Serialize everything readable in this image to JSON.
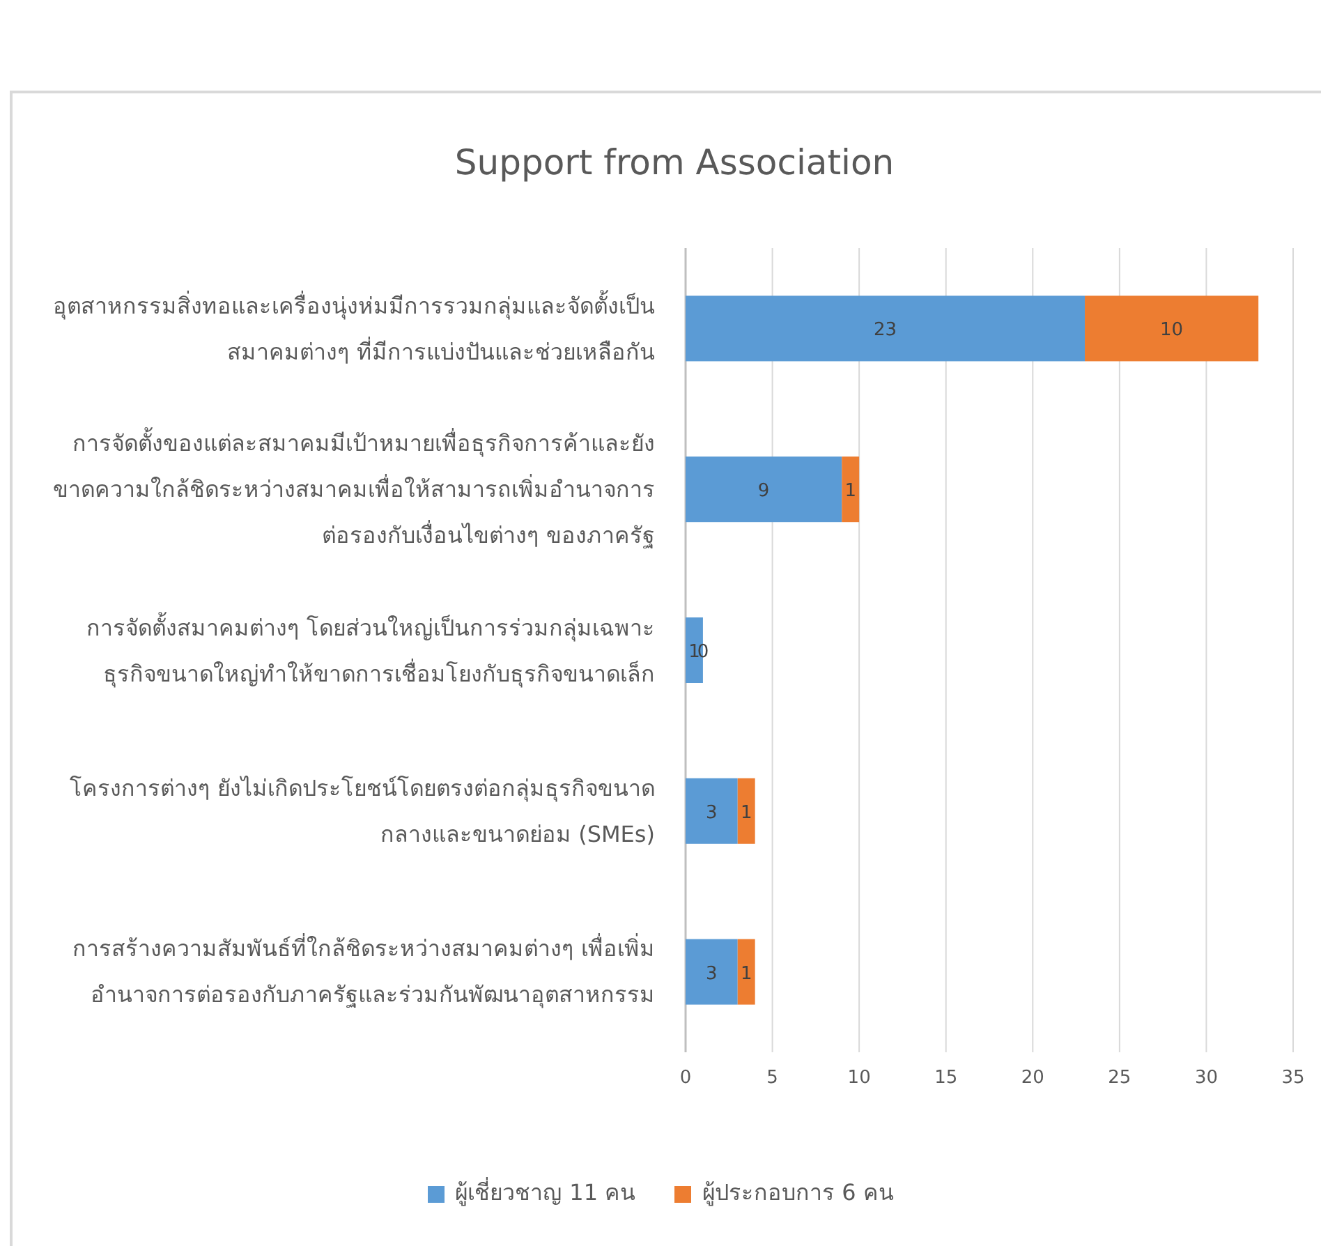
{
  "chart_data": {
    "type": "bar",
    "orientation": "horizontal",
    "stacked": true,
    "title": "Support from Association",
    "categories": [
      "อุตสาหกรรมสิ่งทอและเครื่องนุ่งห่มมีการรวมกลุ่มและจัดตั้งเป็นสมาคมต่างๆ ที่มีการแบ่งปันและช่วยเหลือกัน",
      "การจัดตั้งของแต่ละสมาคมมีเป้าหมายเพื่อธุรกิจการค้าและยังขาดความใกล้ชิดระหว่างสมาคมเพื่อให้สามารถเพิ่มอำนาจการต่อรองกับเงื่อนไขต่างๆ ของภาครัฐ",
      "การจัดตั้งสมาคมต่างๆ โดยส่วนใหญ่เป็นการร่วมกลุ่มเฉพาะธุรกิจขนาดใหญ่ทำให้ขาดการเชื่อมโยงกับธุรกิจขนาดเล็ก",
      "โครงการต่างๆ ยังไม่เกิดประโยชน์โดยตรงต่อกลุ่มธุรกิจขนาดกลางและขนาดย่อม (SMEs)",
      "การสร้างความสัมพันธ์ที่ใกล้ชิดระหว่างสมาคมต่างๆ เพื่อเพิ่มอำนาจการต่อรองกับภาครัฐและร่วมกันพัฒนาอุตสาหกรรม"
    ],
    "series": [
      {
        "name": "ผู้เชี่ยวชาญ 11 คน",
        "color": "#5b9bd5",
        "values": [
          23,
          9,
          1,
          3,
          3
        ]
      },
      {
        "name": "ผู้ประกอบการ 6 คน",
        "color": "#ed7d31",
        "values": [
          10,
          1,
          0,
          1,
          1
        ]
      }
    ],
    "xlim": [
      0,
      35
    ],
    "xticks": [
      0,
      5,
      10,
      15,
      20,
      25,
      30,
      35
    ],
    "grid": "x",
    "legend": "bottom",
    "data_labels": true
  }
}
